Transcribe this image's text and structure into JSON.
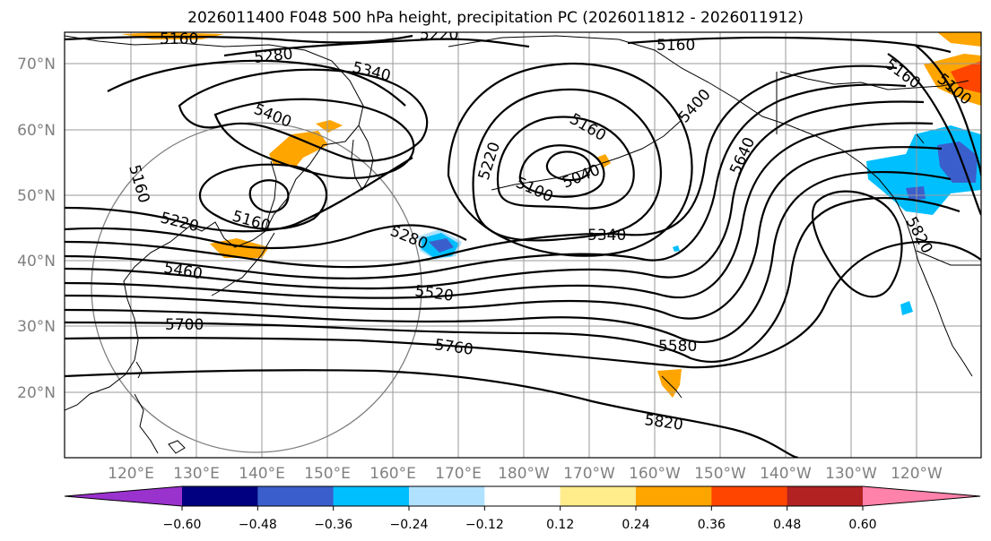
{
  "title": "2026011400 F048 500 hPa height, precipitation PC (2026011812 - 2026011912)",
  "lat_labels": [
    "70°N",
    "60°N",
    "50°N",
    "40°N",
    "30°N",
    "20°N"
  ],
  "lon_labels": [
    "120°E",
    "130°E",
    "140°E",
    "150°E",
    "160°E",
    "170°E",
    "180°W",
    "170°W",
    "160°W",
    "150°W",
    "140°W",
    "130°W",
    "120°W"
  ],
  "contour_labels": [
    "5160",
    "5220",
    "5280",
    "5340",
    "5160",
    "5400",
    "5400",
    "5160",
    "5220",
    "5040",
    "5100",
    "5160",
    "5220",
    "5160",
    "5640",
    "5280",
    "5340",
    "5460",
    "5520",
    "5700",
    "5760",
    "5580",
    "5820",
    "5820",
    "5160",
    "5100"
  ],
  "colorbar": {
    "ticks": [
      "−0.60",
      "−0.48",
      "−0.36",
      "−0.24",
      "−0.12",
      "0.12",
      "0.24",
      "0.36",
      "0.48",
      "0.60"
    ],
    "colors": [
      "#9a32cd",
      "#000080",
      "#3a5fcd",
      "#00bfff",
      "#b0e2ff",
      "#ffffff",
      "#ffec8b",
      "#ffa500",
      "#ff4500",
      "#b22222",
      "#ff82ab"
    ]
  }
}
